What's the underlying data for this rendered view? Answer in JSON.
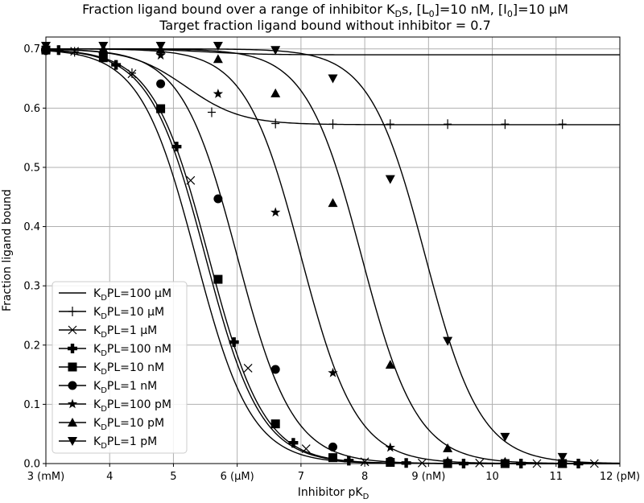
{
  "chart_data": {
    "type": "line",
    "title_line1": "Fraction ligand bound over a range of inhibitor K",
    "title_line1_sub": "D",
    "title_line1_rest": "s, [L",
    "title_l0_sub": "0",
    "title_mid": "]=10 nM, [I",
    "title_i0_sub": "0",
    "title_end": "]=10 µM",
    "title_line2": "Target fraction ligand bound without inhibitor = 0.7",
    "xlabel": "Inhibitor pK",
    "xlabel_sub": "D",
    "ylabel": "Fraction ligand bound",
    "xlim": [
      3,
      12
    ],
    "ylim": [
      0,
      0.72
    ],
    "grid": true,
    "legend_position": "lower-left",
    "x_ticks": [
      3,
      4,
      5,
      6,
      7,
      8,
      9,
      10,
      11,
      12
    ],
    "x_tick_labels": [
      "3 (mM)",
      "4",
      "5",
      "6 (µM)",
      "7",
      "8",
      "9 (nM)",
      "10",
      "11",
      "12 (pM)"
    ],
    "y_ticks": [
      0,
      0.1,
      0.2,
      0.3,
      0.4,
      0.5,
      0.6,
      0.7
    ],
    "y_tick_labels": [
      "0.0",
      "0.1",
      "0.2",
      "0.3",
      "0.4",
      "0.5",
      "0.6",
      "0.7"
    ],
    "legend": [
      {
        "pre": "K",
        "sub": "D",
        "post": "PL=100 µM",
        "marker": "none"
      },
      {
        "pre": "K",
        "sub": "D",
        "post": "PL=10 µM",
        "marker": "plus"
      },
      {
        "pre": "K",
        "sub": "D",
        "post": "PL=1 µM",
        "marker": "x"
      },
      {
        "pre": "K",
        "sub": "D",
        "post": "PL=100 nM",
        "marker": "P"
      },
      {
        "pre": "K",
        "sub": "D",
        "post": "PL=10 nM",
        "marker": "square"
      },
      {
        "pre": "K",
        "sub": "D",
        "post": "PL=1 nM",
        "marker": "circle"
      },
      {
        "pre": "K",
        "sub": "D",
        "post": "PL=100 pM",
        "marker": "star"
      },
      {
        "pre": "K",
        "sub": "D",
        "post": "PL=10 pM",
        "marker": "triangle-up"
      },
      {
        "pre": "K",
        "sub": "D",
        "post": "PL=1 pM",
        "marker": "triangle-down"
      }
    ],
    "series": [
      {
        "name": "KDPL=100 µM",
        "marker": "none",
        "top": 0.7,
        "bottom": 0.69,
        "mid": 5.5,
        "points": []
      },
      {
        "name": "KDPL=10 µM",
        "marker": "plus",
        "top": 0.7,
        "bottom": 0.572,
        "mid": 5.2,
        "points": [
          [
            3.0,
            0.698
          ],
          [
            3.2,
            0.698
          ],
          [
            3.45,
            0.695
          ],
          [
            4.35,
            0.659
          ],
          [
            5.6,
            0.593
          ],
          [
            6.6,
            0.574
          ],
          [
            7.5,
            0.573
          ],
          [
            8.4,
            0.573
          ],
          [
            9.3,
            0.573
          ],
          [
            10.2,
            0.573
          ],
          [
            11.1,
            0.573
          ]
        ]
      },
      {
        "name": "KDPL=1 µM",
        "marker": "x",
        "top": 0.7,
        "bottom": 0.0,
        "mid": 5.35,
        "points": [
          [
            3.0,
            0.698
          ],
          [
            3.45,
            0.696
          ],
          [
            4.35,
            0.658
          ],
          [
            5.27,
            0.478
          ],
          [
            6.17,
            0.161
          ],
          [
            7.08,
            0.025
          ],
          [
            8.0,
            0.003
          ],
          [
            8.9,
            0.001
          ],
          [
            9.8,
            0.001
          ],
          [
            10.7,
            0.0
          ],
          [
            11.6,
            0.0
          ]
        ]
      },
      {
        "name": "KDPL=100 nM",
        "marker": "P",
        "top": 0.7,
        "bottom": 0.0,
        "mid": 5.5,
        "points": [
          [
            3.0,
            0.698
          ],
          [
            3.2,
            0.698
          ],
          [
            4.1,
            0.673
          ],
          [
            5.05,
            0.535
          ],
          [
            5.95,
            0.205
          ],
          [
            6.88,
            0.035
          ],
          [
            7.75,
            0.005
          ],
          [
            8.65,
            0.001
          ],
          [
            9.55,
            0.0
          ],
          [
            10.45,
            0.0
          ],
          [
            11.35,
            0.0
          ]
        ]
      },
      {
        "name": "KDPL=10 nM",
        "marker": "square",
        "top": 0.7,
        "bottom": 0.0,
        "mid": 5.55,
        "points": [
          [
            3.0,
            0.698
          ],
          [
            3.9,
            0.685
          ],
          [
            4.8,
            0.599
          ],
          [
            5.7,
            0.311
          ],
          [
            6.6,
            0.067
          ],
          [
            7.5,
            0.01
          ],
          [
            8.4,
            0.002
          ],
          [
            9.3,
            0.0
          ],
          [
            10.2,
            0.0
          ],
          [
            11.1,
            0.0
          ]
        ]
      },
      {
        "name": "KDPL=1 nM",
        "marker": "circle",
        "top": 0.7,
        "bottom": 0.0,
        "mid": 6.0,
        "points": [
          [
            3.0,
            0.698
          ],
          [
            3.9,
            0.693
          ],
          [
            4.8,
            0.641
          ],
          [
            5.7,
            0.447
          ],
          [
            6.6,
            0.159
          ],
          [
            7.5,
            0.028
          ],
          [
            8.4,
            0.004
          ],
          [
            9.3,
            0.001
          ],
          [
            10.2,
            0.0
          ],
          [
            11.1,
            0.0
          ]
        ]
      },
      {
        "name": "KDPL=100 pM",
        "marker": "star",
        "top": 0.7,
        "bottom": 0.0,
        "mid": 7.0,
        "points": [
          [
            3.0,
            0.698
          ],
          [
            3.9,
            0.697
          ],
          [
            4.8,
            0.689
          ],
          [
            5.7,
            0.624
          ],
          [
            6.6,
            0.424
          ],
          [
            7.5,
            0.153
          ],
          [
            8.4,
            0.027
          ],
          [
            9.3,
            0.004
          ],
          [
            10.2,
            0.0
          ],
          [
            11.1,
            0.0
          ]
        ]
      },
      {
        "name": "KDPL=10 pM",
        "marker": "triangle-up",
        "top": 0.7,
        "bottom": 0.0,
        "mid": 7.95,
        "points": [
          [
            3.0,
            0.7
          ],
          [
            3.9,
            0.7
          ],
          [
            4.8,
            0.699
          ],
          [
            5.7,
            0.683
          ],
          [
            6.6,
            0.625
          ],
          [
            7.5,
            0.44
          ],
          [
            8.4,
            0.167
          ],
          [
            9.3,
            0.026
          ],
          [
            10.2,
            0.003
          ],
          [
            11.1,
            0.0
          ]
        ]
      },
      {
        "name": "KDPL=1 pM",
        "marker": "triangle-down",
        "top": 0.7,
        "bottom": 0.0,
        "mid": 8.95,
        "points": [
          [
            3.0,
            0.705
          ],
          [
            3.9,
            0.705
          ],
          [
            4.8,
            0.705
          ],
          [
            5.7,
            0.705
          ],
          [
            6.6,
            0.698
          ],
          [
            7.5,
            0.65
          ],
          [
            8.4,
            0.48
          ],
          [
            9.3,
            0.207
          ],
          [
            10.2,
            0.045
          ],
          [
            11.1,
            0.011
          ]
        ]
      }
    ]
  }
}
